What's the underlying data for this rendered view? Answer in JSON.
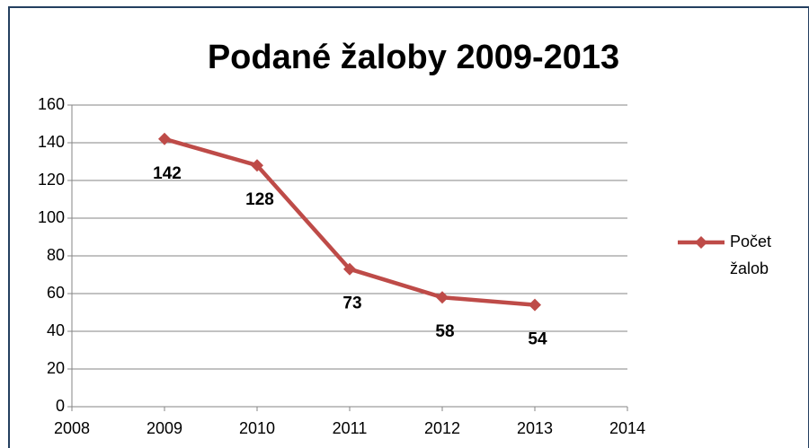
{
  "chart_data": {
    "type": "line",
    "title": "Podané žaloby 2009-2013",
    "x": [
      2009,
      2010,
      2011,
      2012,
      2013
    ],
    "series": [
      {
        "name": "Počet žalob",
        "color": "#be4b48",
        "values": [
          142,
          128,
          73,
          58,
          54
        ]
      }
    ],
    "xlim": [
      2008,
      2014
    ],
    "xticks": [
      2008,
      2009,
      2010,
      2011,
      2012,
      2013,
      2014
    ],
    "ylim": [
      0,
      160
    ],
    "yticks": [
      0,
      20,
      40,
      60,
      80,
      100,
      120,
      140,
      160
    ],
    "grid": true,
    "legend": "right"
  }
}
